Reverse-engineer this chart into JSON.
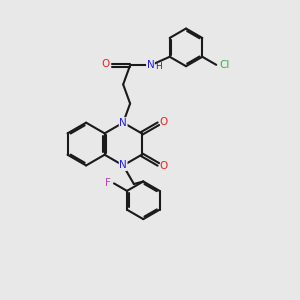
{
  "bg_color": "#e8e8e8",
  "bond_color": "#1a1a1a",
  "N_color": "#2020ee",
  "O_color": "#ee2020",
  "F_color": "#bb44bb",
  "Cl_color": "#44aa44",
  "line_width": 1.5,
  "dbo": 0.055,
  "xlim": [
    0,
    10
  ],
  "ylim": [
    0,
    10
  ]
}
